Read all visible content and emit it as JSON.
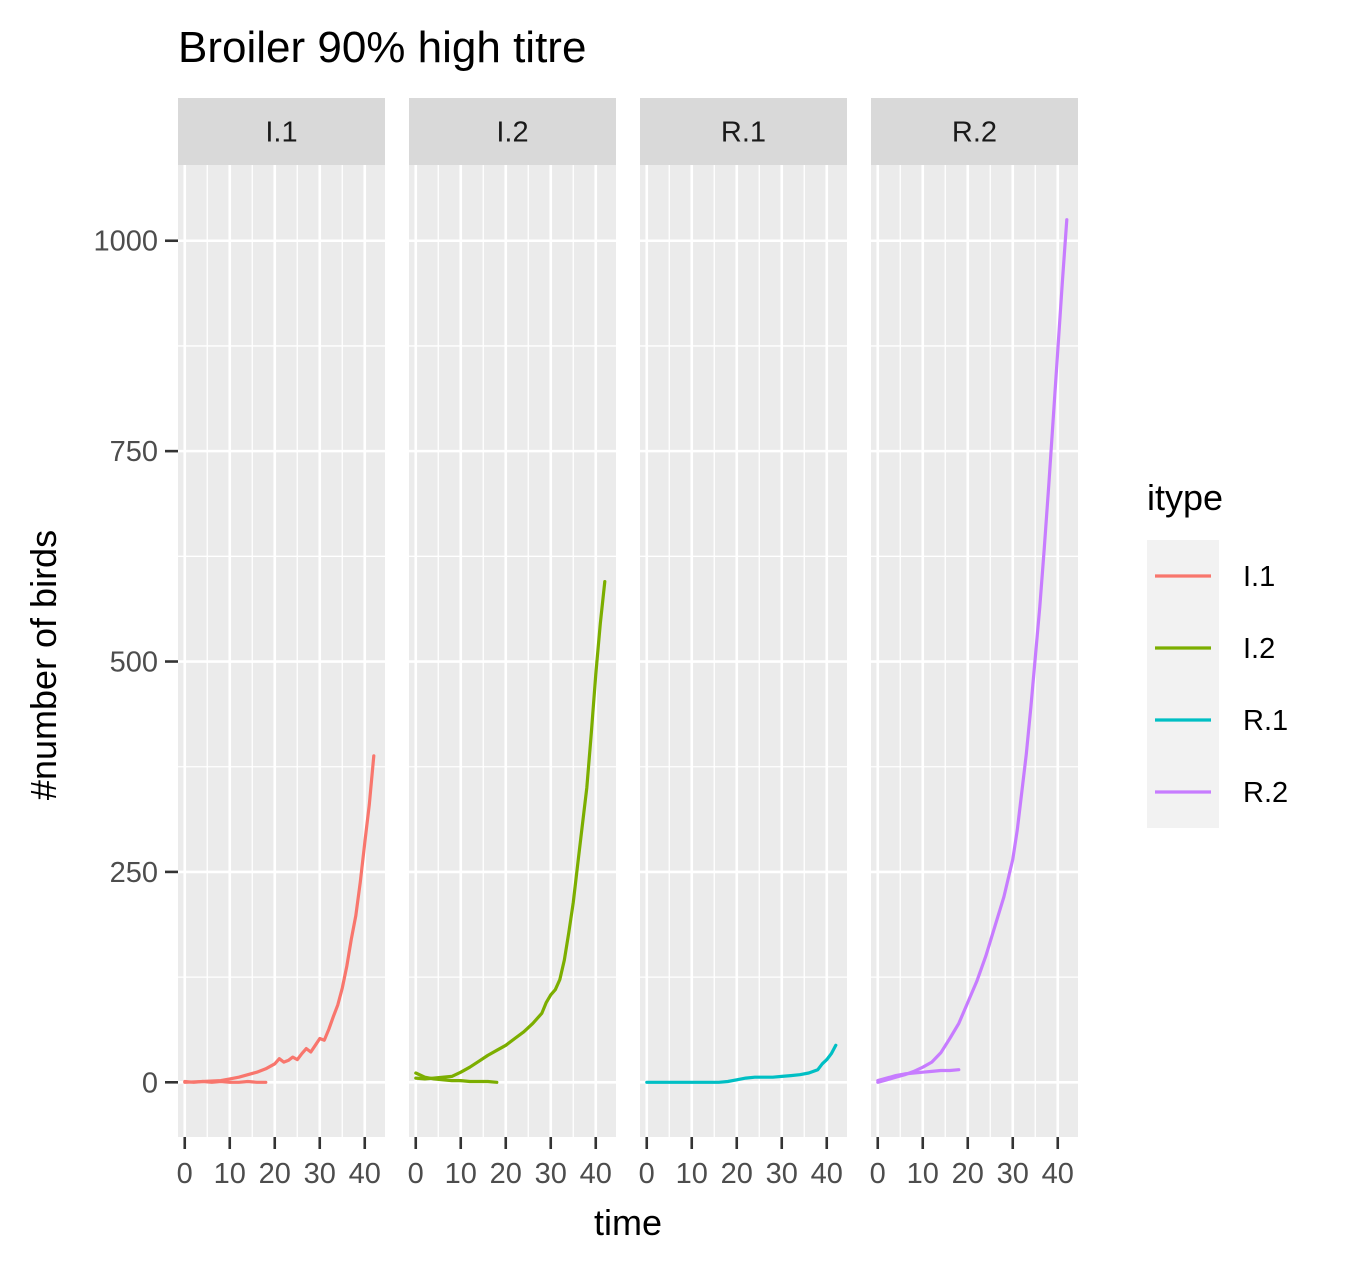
{
  "chart_data": {
    "type": "line",
    "title": "Broiler 90% high titre",
    "xlabel": "time",
    "ylabel": "#number of birds",
    "xlim": [
      -1.5,
      44.5
    ],
    "ylim": [
      -65,
      1090
    ],
    "x_ticks": [
      0,
      10,
      20,
      30,
      40
    ],
    "y_ticks": [
      0,
      250,
      500,
      750,
      1000
    ],
    "grid": true,
    "legend": {
      "title": "itype",
      "position": "right",
      "entries": [
        "I.1",
        "I.2",
        "R.1",
        "R.2"
      ]
    },
    "facets": [
      {
        "strip": "I.1",
        "color": "#F8766D",
        "series": [
          {
            "x": [
              0,
              2,
              4,
              6,
              8,
              10,
              12,
              14,
              16,
              18
            ],
            "y": [
              1,
              0,
              1,
              0,
              1,
              0,
              0,
              1,
              0,
              0
            ]
          },
          {
            "x": [
              0,
              4,
              8,
              10,
              12,
              14,
              16,
              18,
              20,
              21,
              22,
              23,
              24,
              25,
              26,
              27,
              28,
              29,
              30,
              31,
              32,
              33,
              34,
              35,
              36,
              37,
              38,
              39,
              40,
              41,
              42
            ],
            "y": [
              0,
              1,
              2,
              4,
              6,
              9,
              12,
              16,
              22,
              28,
              24,
              26,
              30,
              27,
              34,
              40,
              36,
              44,
              52,
              50,
              63,
              78,
              92,
              112,
              138,
              170,
              198,
              238,
              285,
              330,
              388
            ]
          }
        ]
      },
      {
        "strip": "I.2",
        "color": "#7CAE00",
        "series": [
          {
            "x": [
              0,
              2,
              4,
              6,
              8,
              10,
              12,
              14,
              16,
              18
            ],
            "y": [
              11,
              6,
              4,
              3,
              2,
              2,
              1,
              1,
              1,
              0
            ]
          },
          {
            "x": [
              0,
              2,
              4,
              6,
              8,
              10,
              12,
              14,
              16,
              18,
              20,
              22,
              24,
              26,
              28,
              29,
              30,
              31,
              32,
              33,
              34,
              35,
              36,
              37,
              38,
              39,
              40,
              41,
              42
            ],
            "y": [
              5,
              4,
              5,
              6,
              7,
              12,
              18,
              25,
              32,
              38,
              44,
              52,
              60,
              70,
              82,
              95,
              104,
              110,
              122,
              145,
              178,
              214,
              260,
              305,
              350,
              415,
              485,
              545,
              595
            ]
          }
        ]
      },
      {
        "strip": "R.1",
        "color": "#00BFC4",
        "series": [
          {
            "x": [
              0,
              4,
              8,
              12,
              16,
              18,
              20,
              22,
              24,
              26,
              28,
              30,
              32,
              34,
              36,
              38,
              39,
              40,
              41,
              42
            ],
            "y": [
              0,
              0,
              0,
              0,
              0,
              1,
              3,
              5,
              6,
              6,
              6,
              7,
              8,
              9,
              11,
              15,
              22,
              27,
              34,
              44
            ]
          }
        ]
      },
      {
        "strip": "R.2",
        "color": "#C77CFF",
        "series": [
          {
            "x": [
              0,
              2,
              4,
              6,
              8,
              10,
              12,
              14,
              16,
              18
            ],
            "y": [
              2,
              5,
              8,
              10,
              11,
              12,
              13,
              14,
              14,
              15
            ]
          },
          {
            "x": [
              0,
              2,
              4,
              6,
              8,
              10,
              12,
              14,
              16,
              18,
              20,
              22,
              24,
              26,
              28,
              30,
              31,
              32,
              33,
              34,
              35,
              36,
              37,
              38,
              39,
              40,
              41,
              42
            ],
            "y": [
              0,
              3,
              6,
              9,
              13,
              18,
              24,
              35,
              52,
              70,
              95,
              120,
              150,
              185,
              220,
              265,
              300,
              345,
              390,
              445,
              505,
              565,
              635,
              710,
              790,
              870,
              950,
              1025
            ]
          }
        ]
      }
    ]
  }
}
